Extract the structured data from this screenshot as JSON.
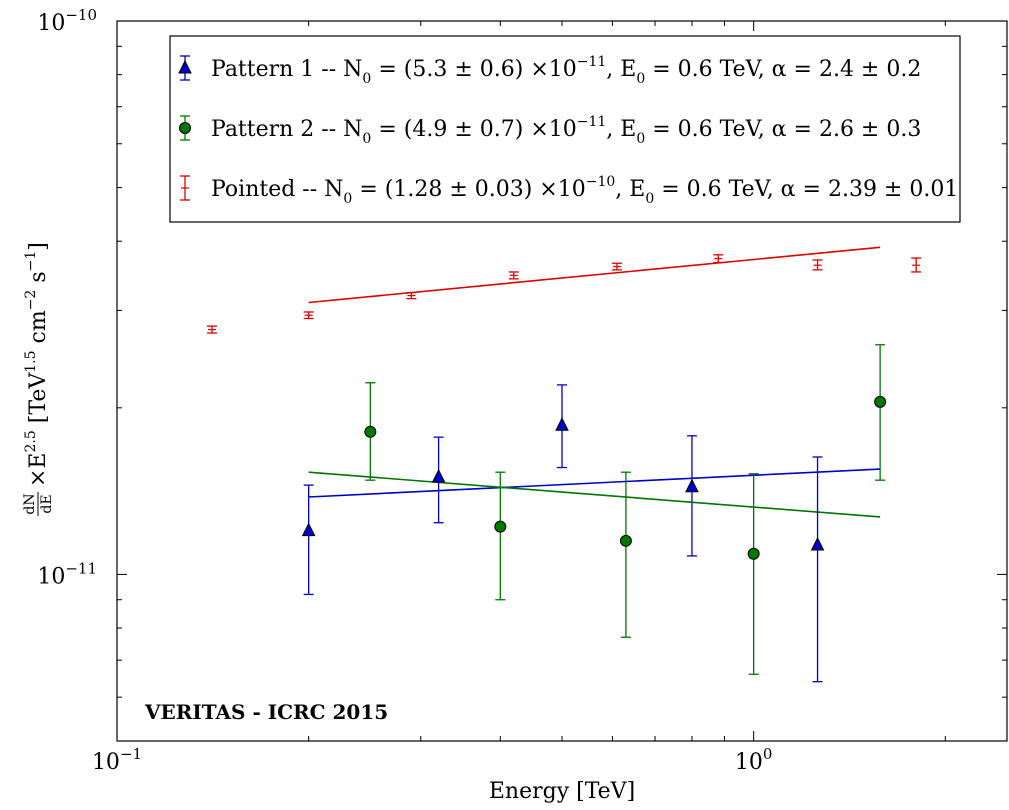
{
  "chart_data": {
    "type": "scatter",
    "title": "",
    "xlabel": "Energy [TeV]",
    "ylabel": "dN/dE × E^2.5 [TeV^1.5 cm^-2 s^-1]",
    "ylabel_parts": {
      "num": "dN",
      "den": "dE",
      "times": "×E",
      "exp1": "2.5",
      "open": "[TeV",
      "exp2": "1.5",
      "cm": "cm",
      "exp3": "−2",
      "s": "s",
      "exp4": "−1",
      "close": "]"
    },
    "xscale": "log",
    "yscale": "log",
    "xlim": [
      0.1,
      2.5
    ],
    "ylim": [
      5e-12,
      1e-10
    ],
    "x_ticks": [
      {
        "value": 0.1,
        "base": "10",
        "exp": "−1"
      },
      {
        "value": 1.0,
        "base": "10",
        "exp": "0"
      }
    ],
    "y_ticks": [
      {
        "value": 1e-11,
        "base": "10",
        "exp": "−11"
      },
      {
        "value": 1e-10,
        "base": "10",
        "exp": "−10"
      }
    ],
    "grid": false,
    "legend_position": "top-right",
    "annotation": "VERITAS - ICRC 2015",
    "series": [
      {
        "name": "Pattern 1 -- N0 = (5.3 ± 0.6) ×10^-11, E0 = 0.6 TeV, α = 2.4 ± 0.2",
        "legend": {
          "prefix": "Pattern 1 -- N",
          "sub": "0",
          "mid": " = (5.3 ± 0.6) ×10",
          "sup": "−11",
          "mid2": ", E",
          "sub2": "0",
          "tail": " = 0.6 TeV, α = 2.4 ± 0.2"
        },
        "color": "#0000cc",
        "marker": "triangle",
        "points": [
          {
            "x": 0.2,
            "y": 1.2e-11,
            "ylo": 9.2e-12,
            "yhi": 1.45e-11
          },
          {
            "x": 0.32,
            "y": 1.5e-11,
            "ylo": 1.24e-11,
            "yhi": 1.77e-11
          },
          {
            "x": 0.5,
            "y": 1.86e-11,
            "ylo": 1.56e-11,
            "yhi": 2.2e-11
          },
          {
            "x": 0.8,
            "y": 1.44e-11,
            "ylo": 1.08e-11,
            "yhi": 1.78e-11
          },
          {
            "x": 1.26,
            "y": 1.13e-11,
            "ylo": 6.4e-12,
            "yhi": 1.63e-11
          }
        ],
        "fit": [
          {
            "x": 0.2,
            "y": 1.38e-11
          },
          {
            "x": 1.58,
            "y": 1.55e-11
          }
        ]
      },
      {
        "name": "Pattern 2 -- N0 = (4.9 ± 0.7) ×10^-11, E0 = 0.6 TeV, α = 2.6 ± 0.3",
        "legend": {
          "prefix": "Pattern 2 -- N",
          "sub": "0",
          "mid": " = (4.9 ± 0.7) ×10",
          "sup": "−11",
          "mid2": ", E",
          "sub2": "0",
          "tail": " = 0.6 TeV, α = 2.6 ± 0.3"
        },
        "color": "#007700",
        "marker": "circle",
        "points": [
          {
            "x": 0.25,
            "y": 1.81e-11,
            "ylo": 1.48e-11,
            "yhi": 2.22e-11
          },
          {
            "x": 0.4,
            "y": 1.22e-11,
            "ylo": 9e-12,
            "yhi": 1.53e-11
          },
          {
            "x": 0.63,
            "y": 1.15e-11,
            "ylo": 7.7e-12,
            "yhi": 1.53e-11
          },
          {
            "x": 1.0,
            "y": 1.09e-11,
            "ylo": 6.6e-12,
            "yhi": 1.52e-11
          },
          {
            "x": 1.58,
            "y": 2.05e-11,
            "ylo": 1.48e-11,
            "yhi": 2.6e-11
          }
        ],
        "fit": [
          {
            "x": 0.2,
            "y": 1.53e-11
          },
          {
            "x": 1.58,
            "y": 1.27e-11
          }
        ]
      },
      {
        "name": "Pointed -- N0 = (1.28 ± 0.03) ×10^-10, E0 = 0.6 TeV, α = 2.39 ± 0.01",
        "legend": {
          "prefix": "Pointed -- N",
          "sub": "0",
          "mid": " = (1.28 ± 0.03) ×10",
          "sup": "−10",
          "mid2": ", E",
          "sub2": "0",
          "tail": " = 0.6 TeV, α = 2.39 ± 0.01"
        },
        "color": "#dd0000",
        "marker": "none",
        "points": [
          {
            "x": 0.141,
            "y": 2.77e-11,
            "ylo": 2.73e-11,
            "yhi": 2.81e-11
          },
          {
            "x": 0.2,
            "y": 2.94e-11,
            "ylo": 2.9e-11,
            "yhi": 2.98e-11
          },
          {
            "x": 0.29,
            "y": 3.19e-11,
            "ylo": 3.15e-11,
            "yhi": 3.23e-11
          },
          {
            "x": 0.42,
            "y": 3.47e-11,
            "ylo": 3.42e-11,
            "yhi": 3.52e-11
          },
          {
            "x": 0.61,
            "y": 3.6e-11,
            "ylo": 3.55e-11,
            "yhi": 3.65e-11
          },
          {
            "x": 0.88,
            "y": 3.72e-11,
            "ylo": 3.66e-11,
            "yhi": 3.78e-11
          },
          {
            "x": 1.26,
            "y": 3.62e-11,
            "ylo": 3.55e-11,
            "yhi": 3.7e-11
          },
          {
            "x": 1.8,
            "y": 3.62e-11,
            "ylo": 3.52e-11,
            "yhi": 3.73e-11
          }
        ],
        "fit": [
          {
            "x": 0.2,
            "y": 3.1e-11
          },
          {
            "x": 1.58,
            "y": 3.9e-11
          }
        ]
      }
    ]
  }
}
